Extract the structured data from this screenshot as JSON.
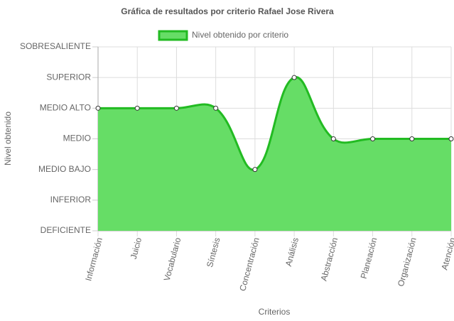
{
  "chart_data": {
    "type": "area",
    "title": "Gráfica de resultados por criterio Rafael Jose Rivera",
    "x_label": "Criterios",
    "y_label": "Nivel obtenido",
    "categories": [
      "Información",
      "Juicio",
      "Vocabulario",
      "Síntesis",
      "Concentración",
      "Análisis",
      "Abstracción",
      "Planeación",
      "Organización",
      "Atención"
    ],
    "series": [
      {
        "name": "Nivel obtenido por criterio",
        "color": "#22bb22",
        "fill": "#66dd66",
        "values": [
          4,
          4,
          4,
          4,
          2,
          5,
          3,
          3,
          3,
          3
        ]
      }
    ],
    "ylim": [
      0,
      6
    ],
    "yticks": [
      {
        "value": 0,
        "label": "DEFICIENTE"
      },
      {
        "value": 1,
        "label": "INFERIOR"
      },
      {
        "value": 2,
        "label": "MEDIO BAJO"
      },
      {
        "value": 3,
        "label": "MEDIO"
      },
      {
        "value": 4,
        "label": "MEDIO ALTO"
      },
      {
        "value": 5,
        "label": "SUPERIOR"
      },
      {
        "value": 6,
        "label": "SOBRESALIENTE"
      }
    ],
    "grid": true,
    "legend": "top"
  }
}
